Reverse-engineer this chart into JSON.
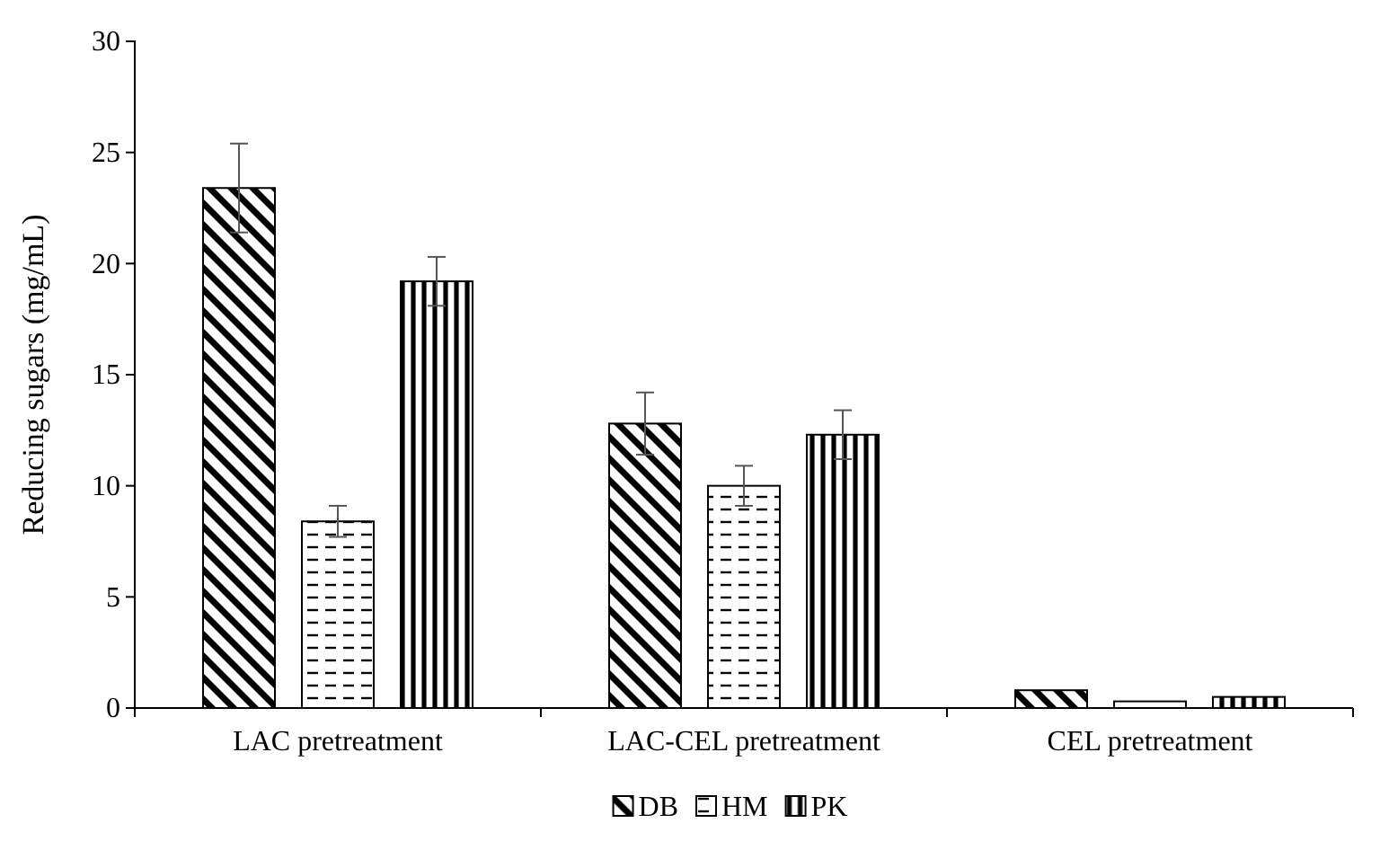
{
  "chart_data": {
    "type": "bar",
    "ylabel": "Reducing sugars (mg/mL)",
    "categories": [
      "LAC pretreatment",
      "LAC-CEL pretreatment",
      "CEL pretreatment"
    ],
    "series": [
      {
        "name": "DB",
        "color": "#000000",
        "values": [
          23.4,
          12.8,
          0.8
        ],
        "errors": [
          2.0,
          1.4,
          null
        ]
      },
      {
        "name": "HM",
        "color": "#000000",
        "values": [
          8.4,
          10.0,
          0.3
        ],
        "errors": [
          0.7,
          0.9,
          null
        ]
      },
      {
        "name": "PK",
        "color": "#000000",
        "values": [
          19.2,
          12.3,
          0.5
        ],
        "errors": [
          1.1,
          1.1,
          null
        ]
      }
    ],
    "ylim": [
      0,
      30
    ],
    "yticks": [
      0,
      5,
      10,
      15,
      20,
      25,
      30
    ],
    "grid": false,
    "legend": "bottom"
  }
}
